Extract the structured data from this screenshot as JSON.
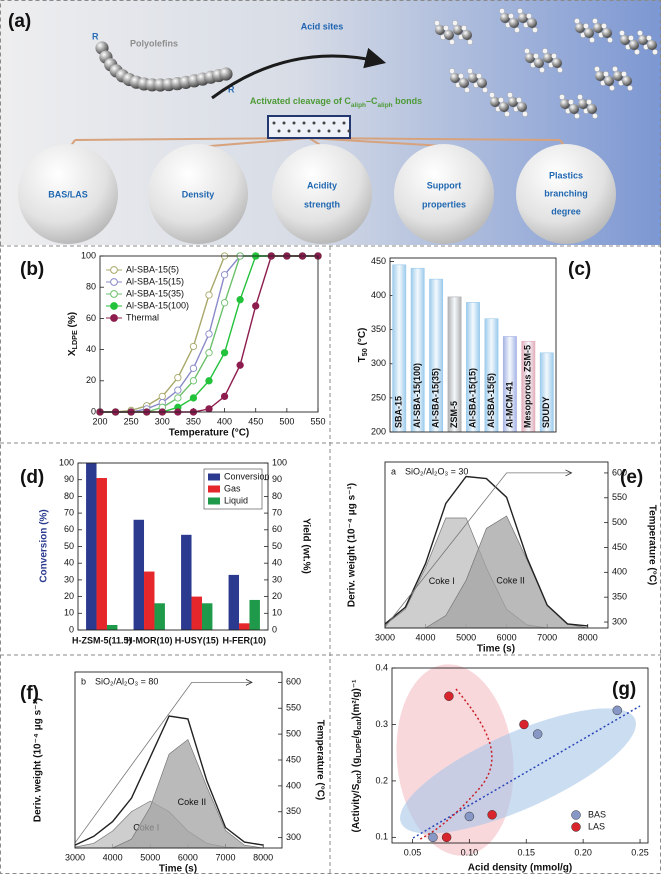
{
  "diagram": {
    "panel": "(a)",
    "title": "Acid sites",
    "chain_ends": [
      "R",
      "R"
    ],
    "chain_label": "Polyolefins",
    "cleavage": [
      "Activated cleavage of C",
      "aliph",
      "–C",
      "aliph",
      " bonds"
    ],
    "factors": [
      [
        "BAS/LAS"
      ],
      [
        "Density"
      ],
      [
        "Acidity",
        "strength"
      ],
      [
        "Support",
        "properties"
      ],
      [
        "Plastics",
        "branching",
        "degree"
      ]
    ]
  },
  "chart_data": [
    {
      "panel": "(b)",
      "type": "line",
      "ylabel": [
        "X",
        "LDPE",
        " (%)"
      ],
      "xlabel": "Temperature (°C)",
      "x": [
        200,
        225,
        250,
        275,
        300,
        325,
        350,
        375,
        400,
        425,
        450,
        475,
        500,
        525,
        550
      ],
      "xlim": [
        200,
        550
      ],
      "xticks": [
        200,
        250,
        300,
        350,
        400,
        450,
        500,
        550
      ],
      "ylim": [
        0,
        100
      ],
      "yticks": [
        0,
        20,
        40,
        60,
        80,
        100
      ],
      "legend": "top-left",
      "markers": true,
      "series": [
        {
          "name": "Al-SBA-15(5)",
          "color": "#a8a86a",
          "filled": false,
          "values": [
            0,
            0,
            1,
            4,
            10,
            22,
            42,
            75,
            100,
            100,
            100,
            100,
            100,
            100,
            100
          ]
        },
        {
          "name": "Al-SBA-15(15)",
          "color": "#8a8ac8",
          "filled": false,
          "values": [
            0,
            0,
            0,
            2,
            6,
            14,
            28,
            50,
            88,
            100,
            100,
            100,
            100,
            100,
            100
          ]
        },
        {
          "name": "Al-SBA-15(35)",
          "color": "#6cc06c",
          "filled": false,
          "values": [
            0,
            0,
            0,
            0,
            3,
            9,
            20,
            38,
            70,
            100,
            100,
            100,
            100,
            100,
            100
          ]
        },
        {
          "name": "Al-SBA-15(100)",
          "color": "#22c23a",
          "filled": true,
          "values": [
            0,
            0,
            0,
            0,
            0,
            3,
            9,
            20,
            38,
            72,
            100,
            100,
            100,
            100,
            100
          ]
        },
        {
          "name": "Thermal",
          "color": "#8c1d4e",
          "filled": true,
          "values": [
            0,
            0,
            0,
            0,
            0,
            0,
            0,
            2,
            10,
            30,
            68,
            100,
            100,
            100,
            100
          ]
        }
      ]
    },
    {
      "panel": "(c)",
      "type": "bar",
      "ylabel": [
        "T",
        "50",
        " (°C)"
      ],
      "categories": [
        "SBA-15",
        "Al-SBA-15(100)",
        "Al-SBA-15(35)",
        "ZSM-5",
        "Al-SBA-15(15)",
        "Al-SBA-15(5)",
        "Al-MCM-41",
        "Mesoporous ZSM-5",
        "SDUDY"
      ],
      "values": [
        445,
        440,
        424,
        398,
        390,
        366,
        340,
        333,
        316
      ],
      "colors": [
        "#9ccbec",
        "#9ccbec",
        "#9ccbec",
        "#b0b0b0",
        "#9ccbec",
        "#9ccbec",
        "#a8b4e6",
        "#e3aebb",
        "#9ccbec"
      ],
      "ylim": [
        200,
        455
      ],
      "yticks": [
        200,
        250,
        300,
        350,
        400,
        450
      ]
    },
    {
      "panel": "(d)",
      "type": "bar",
      "ylabel": "Conversion (%)",
      "ylabel_color": "#2b3a8f",
      "y2label": "Yield (wt.%)",
      "categories": [
        "H-ZSM-5(11.5)",
        "H-MOR(10)",
        "H-USY(15)",
        "H-FER(10)"
      ],
      "ylim": [
        0,
        100
      ],
      "yticks": [
        0,
        10,
        20,
        30,
        40,
        50,
        60,
        70,
        80,
        90,
        100
      ],
      "y2lim": [
        0,
        100
      ],
      "y2ticks": [
        0,
        10,
        20,
        30,
        40,
        50,
        60,
        70,
        80,
        90,
        100
      ],
      "legend": "top-right",
      "series": [
        {
          "name": "Conversion",
          "color": "#2b3a8f",
          "values": [
            100,
            66,
            57,
            33
          ]
        },
        {
          "name": "Gas",
          "color": "#e5262a",
          "axis": "y2",
          "values": [
            91,
            35,
            20,
            4
          ]
        },
        {
          "name": "Liquid",
          "color": "#1f9a4a",
          "axis": "y2",
          "values": [
            3,
            16,
            16,
            18
          ]
        }
      ]
    },
    {
      "panel": "(e)",
      "type": "line",
      "tag": "a",
      "annotation": "SiO₂/Al₂O₃ = 30",
      "ylabel": "Deriv. weight (10⁻⁴ μg s⁻¹)",
      "y2label": "Temperature (°C)",
      "xlabel": "Time (s)",
      "x": [
        3000,
        3500,
        4000,
        4500,
        5000,
        5500,
        6000,
        6500,
        7000,
        7500,
        8000
      ],
      "xlim": [
        3000,
        8500
      ],
      "xticks": [
        3000,
        4000,
        5000,
        6000,
        7000,
        8000
      ],
      "ylim": [
        0,
        8
      ],
      "y2lim": [
        288,
        622
      ],
      "y2ticks": [
        300,
        350,
        400,
        450,
        500,
        550,
        600
      ],
      "series": [
        {
          "name": "Coke I",
          "color": "#bdbdbd",
          "area": true,
          "values": [
            0.15,
            0.9,
            2.9,
            5.3,
            5.3,
            2.9,
            0.9,
            0.15,
            0,
            0,
            0
          ]
        },
        {
          "name": "Coke II",
          "color": "#a3a3a3",
          "area": true,
          "values": [
            0,
            0,
            0,
            0.6,
            2.3,
            4.8,
            5.4,
            3.3,
            1.1,
            0.2,
            0
          ]
        },
        {
          "color": "#222222",
          "values": [
            0.2,
            1.0,
            3.1,
            6.0,
            7.3,
            7.2,
            6.3,
            3.4,
            1.1,
            0.2,
            0.1
          ]
        },
        {
          "color": "#777777",
          "axis": "y2",
          "x": [
            3000,
            6000,
            7600
          ],
          "values": [
            290,
            600,
            600
          ]
        }
      ]
    },
    {
      "panel": "(f)",
      "type": "line",
      "tag": "b",
      "annotation": "SiO₂/Al₂O₃ = 80",
      "ylabel": "Deriv. weight (10⁻⁴ μg s⁻¹)",
      "y2label": "Temperature (°C)",
      "xlabel": "Time (s)",
      "x": [
        3000,
        3500,
        4000,
        4500,
        5000,
        5500,
        6000,
        6500,
        7000,
        7500,
        8000
      ],
      "xlim": [
        3000,
        8500
      ],
      "xticks": [
        3000,
        4000,
        5000,
        6000,
        7000,
        8000
      ],
      "ylim": [
        0,
        6
      ],
      "y2lim": [
        280,
        620
      ],
      "y2ticks": [
        300,
        350,
        400,
        450,
        500,
        550,
        600
      ],
      "series": [
        {
          "name": "Coke I",
          "color": "#bdbdbd",
          "area": true,
          "values": [
            0.03,
            0.16,
            0.58,
            1.24,
            1.6,
            1.24,
            0.58,
            0.16,
            0.03,
            0,
            0
          ]
        },
        {
          "name": "Coke II",
          "color": "#a3a3a3",
          "area": true,
          "values": [
            0,
            0,
            0,
            0.3,
            1.4,
            3.2,
            3.7,
            2.1,
            0.6,
            0.1,
            0
          ]
        },
        {
          "color": "#222222",
          "values": [
            0.1,
            0.4,
            0.9,
            1.7,
            3.1,
            4.5,
            4.4,
            2.3,
            0.7,
            0.2,
            0.1
          ]
        },
        {
          "color": "#777777",
          "axis": "y2",
          "x": [
            3000,
            6100,
            7700
          ],
          "values": [
            290,
            600,
            600
          ]
        }
      ]
    },
    {
      "panel": "(g)",
      "type": "scatter",
      "xlabel": "Acid density (mmol/g)",
      "ylabel": [
        "(Activity/S",
        "ext",
        ") (g",
        "LDPE",
        "/g",
        "cat",
        ")(m²/g)⁻¹"
      ],
      "xlim": [
        0.032,
        0.257
      ],
      "xticks": [
        0.05,
        {
          "value": 0.1,
          "label": "0.10"
        },
        0.15,
        {
          "value": 0.2,
          "label": "0.20"
        },
        0.25
      ],
      "ylim": [
        0.09,
        0.4
      ],
      "yticks": [
        0.1,
        0.2,
        0.3,
        0.4
      ],
      "legend": "bottom-right",
      "series": [
        {
          "name": "BAS",
          "color": "#8797c6",
          "x": [
            0.068,
            0.1,
            0.16,
            0.23
          ],
          "values": [
            0.1,
            0.137,
            0.283,
            0.325
          ]
        },
        {
          "name": "LAS",
          "color": "#d8242d",
          "x": [
            0.082,
            0.08,
            0.12,
            0.148
          ],
          "values": [
            0.35,
            0.1,
            0.14,
            0.3
          ]
        }
      ]
    }
  ]
}
